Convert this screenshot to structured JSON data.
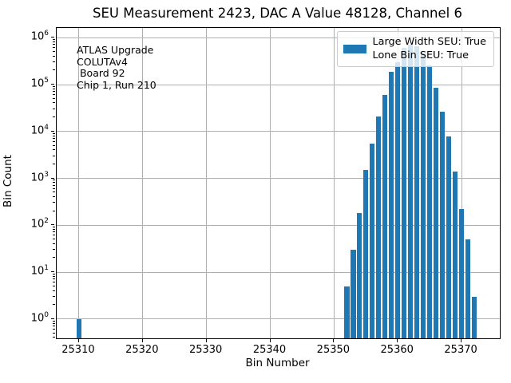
{
  "title": "SEU Measurement 2423, DAC A Value 48128, Channel 6",
  "annotation": {
    "lines": [
      "ATLAS Upgrade",
      "COLUTAv4",
      " Board 92",
      "Chip 1, Run 210"
    ]
  },
  "legend": {
    "entries": [
      {
        "swatch_color": "#1f77b4",
        "lines": [
          "Large Width SEU: True",
          "Lone Bin SEU: True"
        ]
      }
    ],
    "position": "upper right"
  },
  "chart_data": {
    "type": "bar",
    "title": "SEU Measurement 2423, DAC A Value 48128, Channel 6",
    "xlabel": "Bin Number",
    "ylabel": "Bin Count",
    "x": [
      25310,
      25352,
      25353,
      25354,
      25355,
      25356,
      25357,
      25358,
      25359,
      25360,
      25361,
      25362,
      25363,
      25364,
      25365,
      25366,
      25367,
      25368,
      25369,
      25370,
      25371,
      25372
    ],
    "values": [
      1,
      5,
      30,
      180,
      1500,
      5500,
      21000,
      60000,
      190000,
      300000,
      600000,
      700000,
      650000,
      480000,
      260000,
      85000,
      27000,
      8000,
      1400,
      220,
      50,
      3
    ],
    "bar_width_bins": 0.8,
    "bar_color": "#1f77b4",
    "grid": true,
    "grid_color": "#b0b0b0",
    "x_ticks": [
      25310,
      25320,
      25330,
      25340,
      25350,
      25360,
      25370
    ],
    "xlim": [
      25306.5,
      25376.0
    ],
    "y_scale": "log",
    "y_tick_exponents": [
      0,
      1,
      2,
      3,
      4,
      5,
      6
    ],
    "ylim_log10": [
      -0.41,
      6.21
    ]
  }
}
